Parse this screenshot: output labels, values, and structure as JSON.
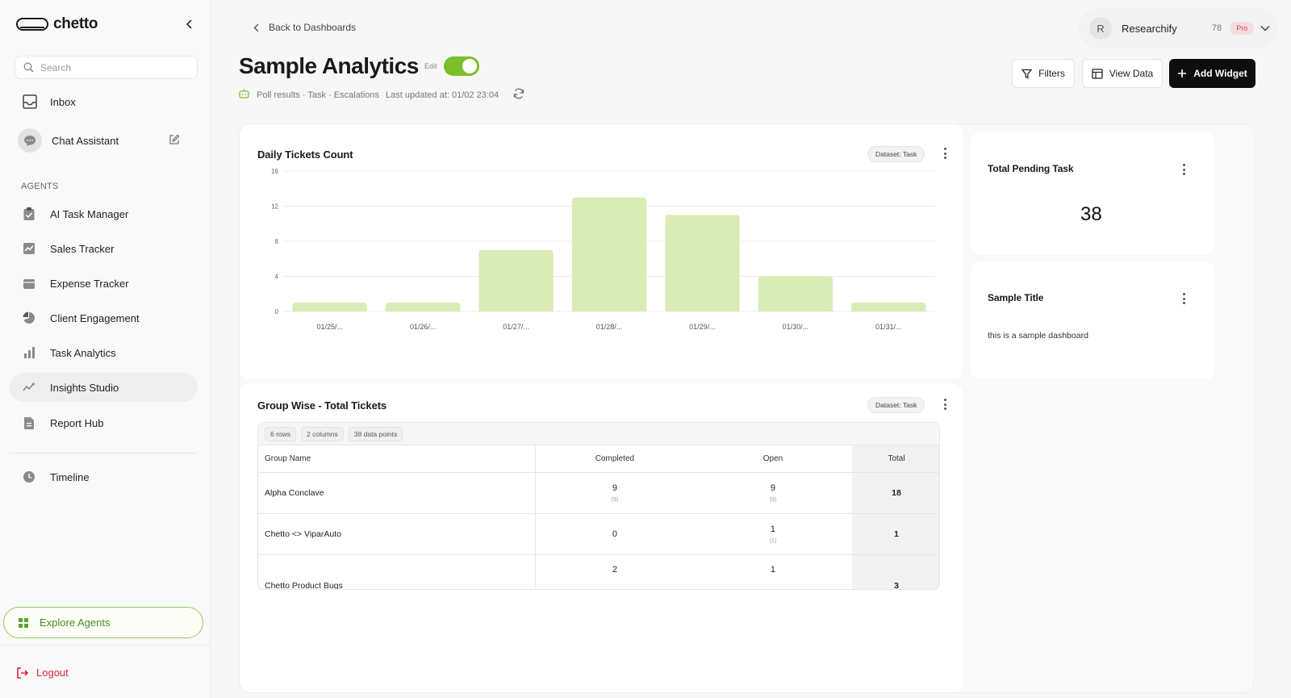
{
  "sidebar": {
    "brand": "chetto",
    "search_placeholder": "Search",
    "inbox": "Inbox",
    "chat_assistant": "Chat Assistant",
    "agents_label": "AGENTS",
    "agents": [
      {
        "label": "AI Task Manager",
        "icon": "clipboard-check-icon"
      },
      {
        "label": "Sales Tracker",
        "icon": "trend-chart-icon"
      },
      {
        "label": "Expense Tracker",
        "icon": "wallet-icon"
      },
      {
        "label": "Client Engagement",
        "icon": "pie-chart-icon"
      },
      {
        "label": "Task Analytics",
        "icon": "bar-chart-icon"
      },
      {
        "label": "Insights Studio",
        "icon": "sparkline-icon"
      },
      {
        "label": "Report Hub",
        "icon": "document-icon"
      }
    ],
    "active_item": "Insights Studio",
    "timeline": "Timeline",
    "explore_agents": "Explore Agents",
    "logout": "Logout"
  },
  "header": {
    "back_link": "Back to Dashboards",
    "title": "Sample Analytics",
    "edit_label": "Edit",
    "edit_enabled": true,
    "meta_sources": "Poll results · Task · Escalations",
    "last_updated": "Last updated at: 01/02 23:04"
  },
  "account": {
    "initial": "R",
    "name": "Researchify",
    "count": "78",
    "plan": "Pro"
  },
  "toolbar": {
    "filters": "Filters",
    "view_data": "View Data",
    "add_widget": "Add Widget"
  },
  "widgets": {
    "daily_tickets": {
      "title": "Daily Tickets Count",
      "dataset": "Dataset: Task"
    },
    "pending": {
      "title": "Total Pending Task",
      "value": "38"
    },
    "note": {
      "title": "Sample Title",
      "text": "this is a sample dashboard"
    },
    "group_table": {
      "title": "Group Wise - Total Tickets",
      "dataset": "Dataset: Task",
      "meta": [
        "6 rows",
        "2 columns",
        "38 data points"
      ],
      "columns": [
        "Group Name",
        "Completed",
        "Open",
        "Total"
      ],
      "rows": [
        {
          "name": "Alpha Conclave",
          "completed": "9",
          "completed_sub": "(9)",
          "open": "9",
          "open_sub": "(9)",
          "total": "18"
        },
        {
          "name": "Chetto <> ViparAuto",
          "completed": "0",
          "completed_sub": "",
          "open": "1",
          "open_sub": "(1)",
          "total": "1"
        },
        {
          "name": "Chetto Product Bugs",
          "completed": "2",
          "completed_sub": "",
          "open": "1",
          "open_sub": "",
          "total": "3"
        }
      ]
    }
  },
  "colors": {
    "accent_green": "#7bbf2a",
    "bar_fill": "#d9ecb5",
    "logout_red": "#d8263a"
  },
  "chart_data": {
    "type": "bar",
    "title": "Daily Tickets Count",
    "categories": [
      "01/25/...",
      "01/26/...",
      "01/27/...",
      "01/28/...",
      "01/29/...",
      "01/30/...",
      "01/31/..."
    ],
    "values": [
      1,
      1,
      7,
      13,
      11,
      4,
      1
    ],
    "ylim": [
      0,
      16
    ],
    "yticks": [
      "0",
      "4",
      "8",
      "12",
      "16"
    ],
    "xlabel": "",
    "ylabel": ""
  }
}
